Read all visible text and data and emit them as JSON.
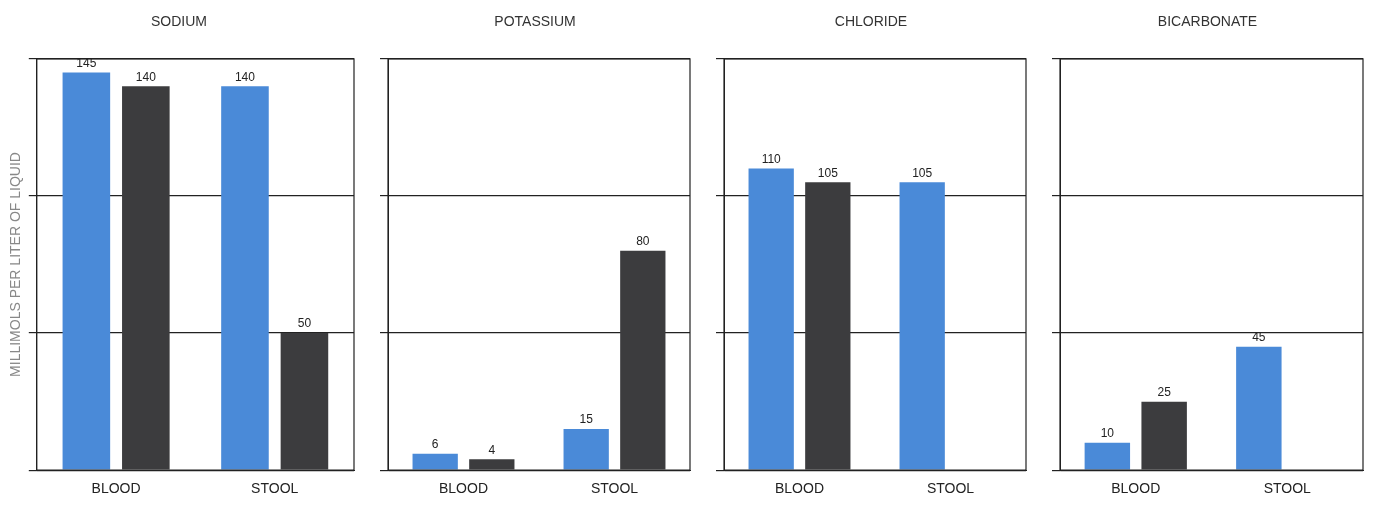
{
  "chart_data": [
    {
      "type": "bar",
      "title": "SODIUM",
      "ylabel": "MILLIMOLS PER LITER OF LIQUID",
      "categories": [
        "BLOOD",
        "STOOL"
      ],
      "series": [
        {
          "color": "#4a8ad8",
          "values": [
            145,
            140
          ]
        },
        {
          "color": "#3c3c3e",
          "values": [
            140,
            50
          ]
        }
      ],
      "ylim": [
        0,
        150
      ],
      "yticks": [
        {
          "value": 0,
          "label": null
        },
        {
          "value": 50,
          "label": null
        },
        {
          "value": 100,
          "label": null
        },
        {
          "value": 150,
          "label": null
        }
      ],
      "grid": "y",
      "tick_labels": "x",
      "data_labels": true
    },
    {
      "type": "bar",
      "title": "POTASSIUM",
      "categories": [
        "BLOOD",
        "STOOL"
      ],
      "series": [
        {
          "color": "#4a8ad8",
          "values": [
            6,
            15
          ]
        },
        {
          "color": "#3c3c3e",
          "values": [
            4,
            80
          ]
        }
      ],
      "ylim": [
        0,
        150
      ],
      "yticks": [
        {
          "value": 0,
          "label": null
        },
        {
          "value": 50,
          "label": null
        },
        {
          "value": 100,
          "label": null
        },
        {
          "value": 150,
          "label": null
        }
      ],
      "grid": "y",
      "tick_labels": "x",
      "data_labels": true
    },
    {
      "type": "bar",
      "title": "CHLORIDE",
      "categories": [
        "BLOOD",
        "STOOL"
      ],
      "series": [
        {
          "color": "#4a8ad8",
          "values": [
            110,
            105
          ]
        },
        {
          "color": "#3c3c3e",
          "values": [
            105,
            null
          ]
        }
      ],
      "ylim": [
        0,
        150
      ],
      "yticks": [
        {
          "value": 0,
          "label": null
        },
        {
          "value": 50,
          "label": null
        },
        {
          "value": 100,
          "label": null
        },
        {
          "value": 150,
          "label": null
        }
      ],
      "grid": "y",
      "tick_labels": "x",
      "data_labels": true
    },
    {
      "type": "bar",
      "title": "BICARBONATE",
      "categories": [
        "BLOOD",
        "STOOL"
      ],
      "series": [
        {
          "color": "#4a8ad8",
          "values": [
            10,
            45
          ]
        },
        {
          "color": "#3c3c3e",
          "values": [
            25,
            null
          ]
        }
      ],
      "ylim": [
        0,
        150
      ],
      "yticks": [
        {
          "value": 0,
          "label": null
        },
        {
          "value": 50,
          "label": null
        },
        {
          "value": 100,
          "label": null
        },
        {
          "value": 150,
          "label": null
        }
      ],
      "grid": "y",
      "tick_labels": "x",
      "data_labels": true
    }
  ]
}
